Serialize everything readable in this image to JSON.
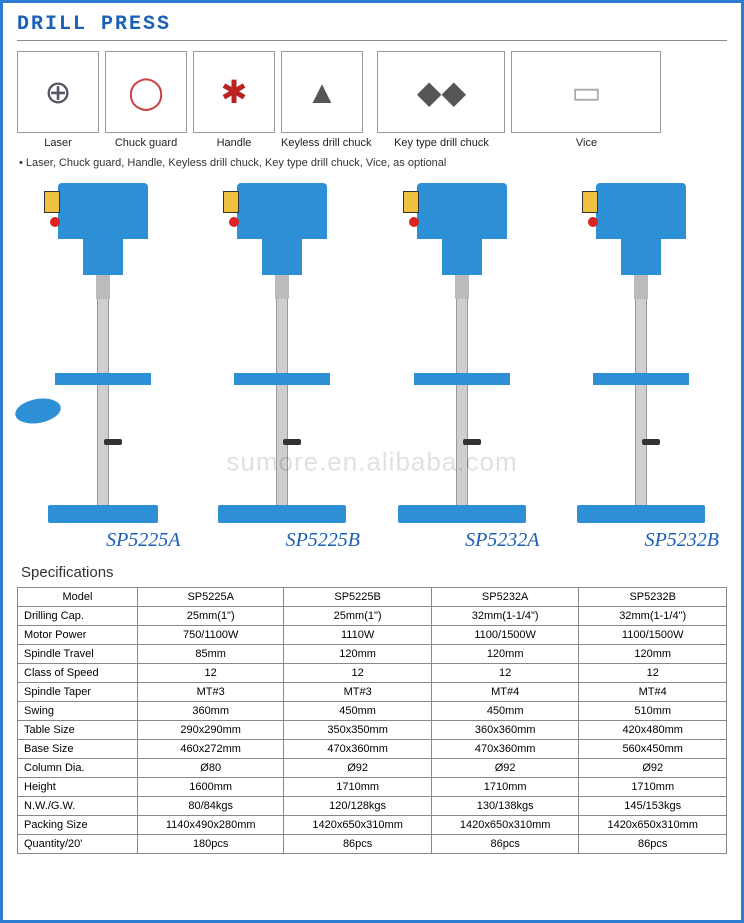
{
  "title": "DRILL PRESS",
  "accessories": [
    {
      "label": "Laser",
      "icon": "⊕",
      "width": "normal",
      "bg": "#556"
    },
    {
      "label": "Chuck guard",
      "icon": "◯",
      "width": "normal",
      "bg": "#c44"
    },
    {
      "label": "Handle",
      "icon": "✱",
      "width": "normal",
      "bg": "#b22"
    },
    {
      "label": "Keyless drill chuck",
      "icon": "▲",
      "width": "normal",
      "bg": "#555"
    },
    {
      "label": "Key type drill chuck",
      "icon": "◆◆",
      "width": "wide",
      "bg": "#555"
    },
    {
      "label": "Vice",
      "icon": "▭",
      "width": "wider",
      "bg": "#aaa"
    }
  ],
  "note": "• Laser, Chuck guard, Handle, Keyless drill chuck, Key type drill chuck, Vice, as optional",
  "watermark": "sumore.en.alibaba.com",
  "products": [
    {
      "model": "SP5225A",
      "base": "normal",
      "round_table": true
    },
    {
      "model": "SP5225B",
      "base": "wide",
      "round_table": false
    },
    {
      "model": "SP5232A",
      "base": "wide",
      "round_table": false
    },
    {
      "model": "SP5232B",
      "base": "wide",
      "round_table": false
    }
  ],
  "specs_title": "Specifications",
  "spec_columns": [
    "Model",
    "SP5225A",
    "SP5225B",
    "SP5232A",
    "SP5232B"
  ],
  "spec_rows": [
    [
      "Drilling Cap.",
      "25mm(1\")",
      "25mm(1\")",
      "32mm(1-1/4\")",
      "32mm(1-1/4\")"
    ],
    [
      "Motor Power",
      "750/1100W",
      "1110W",
      "1100/1500W",
      "1100/1500W"
    ],
    [
      "Spindle Travel",
      "85mm",
      "120mm",
      "120mm",
      "120mm"
    ],
    [
      "Class of Speed",
      "12",
      "12",
      "12",
      "12"
    ],
    [
      "Spindle Taper",
      "MT#3",
      "MT#3",
      "MT#4",
      "MT#4"
    ],
    [
      "Swing",
      "360mm",
      "450mm",
      "450mm",
      "510mm"
    ],
    [
      "Table Size",
      "290x290mm",
      "350x350mm",
      "360x360mm",
      "420x480mm"
    ],
    [
      "Base Size",
      "460x272mm",
      "470x360mm",
      "470x360mm",
      "560x450mm"
    ],
    [
      "Column Dia.",
      "Ø80",
      "Ø92",
      "Ø92",
      "Ø92"
    ],
    [
      "Height",
      "1600mm",
      "1710mm",
      "1710mm",
      "1710mm"
    ],
    [
      "N.W./G.W.",
      "80/84kgs",
      "120/128kgs",
      "130/138kgs",
      "145/153kgs"
    ],
    [
      "Packing Size",
      "1140x490x280mm",
      "1420x650x310mm",
      "1420x650x310mm",
      "1420x650x310mm"
    ],
    [
      "Quantity/20'",
      "180pcs",
      "86pcs",
      "86pcs",
      "86pcs"
    ]
  ],
  "colors": {
    "border": "#2b7dd4",
    "title": "#1a5fb8",
    "drill": "#2d8fd6",
    "column": "#cfcfcf",
    "table_border": "#888"
  }
}
